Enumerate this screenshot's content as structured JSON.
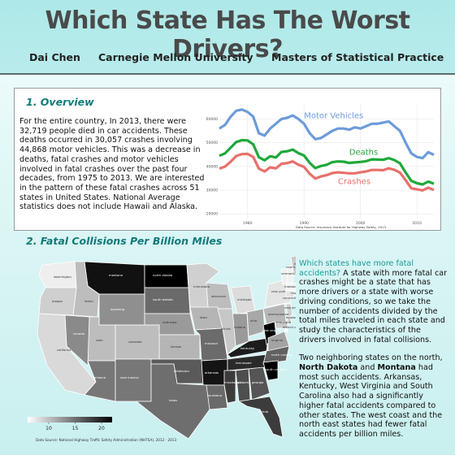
{
  "header": {
    "title": "Which State Has The Worst Drivers?",
    "author": "Dai Chen",
    "university": "Carnegie Mellon University",
    "program": "Masters of Statistical Practice"
  },
  "overview": {
    "heading": "1. Overview",
    "text": "For the entire country, In 2013, there were 32,719 people died in car accidents. These deaths occurred in 30,057 crashes involving 44,868 motor vehicles. This was a decrease in deaths, fatal crashes and motor vehicles involved in fatal crashes over the past four decades, from 1975 to 2013. We are interested in the pattern of these fatal crashes across 51 states in United States. National Average statistics does not include Hawaii and Alaska."
  },
  "chart_data": {
    "type": "line",
    "title": "",
    "xlabel": "",
    "ylabel": "",
    "xlim": [
      1975,
      2013
    ],
    "ylim": [
      18000,
      66000
    ],
    "xticks": [
      "1980",
      "1990",
      "2000",
      "2010"
    ],
    "xtick_values": [
      1980,
      1990,
      2000,
      2010
    ],
    "yticks": [
      "20000",
      "30000",
      "40000",
      "50000",
      "60000"
    ],
    "ytick_values": [
      20000,
      30000,
      40000,
      50000,
      60000
    ],
    "grid": true,
    "source": "Data Source:  Insurance Institute for Highway Safety, 2013",
    "x": [
      1975,
      1976,
      1977,
      1978,
      1979,
      1980,
      1981,
      1982,
      1983,
      1984,
      1985,
      1986,
      1987,
      1988,
      1989,
      1990,
      1991,
      1992,
      1993,
      1994,
      1995,
      1996,
      1997,
      1998,
      1999,
      2000,
      2001,
      2002,
      2003,
      2004,
      2005,
      2006,
      2007,
      2008,
      2009,
      2010,
      2011,
      2012,
      2013
    ],
    "series": [
      {
        "name": "Motor Vehicles",
        "color": "#6c9bd9",
        "values": [
          56000,
          57500,
          61000,
          63500,
          64000,
          63000,
          61000,
          54000,
          53000,
          56000,
          58000,
          60000,
          60500,
          61500,
          60000,
          58000,
          54000,
          51500,
          52000,
          53500,
          55000,
          56000,
          56000,
          55500,
          56500,
          56000,
          57000,
          58000,
          58000,
          58500,
          59000,
          57000,
          55000,
          50000,
          45500,
          44000,
          43500,
          46000,
          44900
        ]
      },
      {
        "name": "Deaths",
        "color": "#1fa83a",
        "values": [
          44500,
          45500,
          47900,
          50300,
          51100,
          51000,
          49300,
          43900,
          42600,
          44300,
          43800,
          46100,
          46400,
          47100,
          45600,
          44600,
          41500,
          39300,
          40200,
          40700,
          41800,
          42100,
          42000,
          41500,
          41700,
          41900,
          42200,
          43000,
          42900,
          42800,
          43500,
          42700,
          41300,
          37400,
          33900,
          32900,
          32400,
          33600,
          32700
        ]
      },
      {
        "name": "Crashes",
        "color": "#e8706b",
        "values": [
          39100,
          39900,
          42000,
          44400,
          45200,
          45300,
          44000,
          39100,
          37900,
          39600,
          39200,
          41100,
          41400,
          42100,
          40700,
          39800,
          36900,
          34900,
          35800,
          36300,
          37200,
          37500,
          37300,
          37100,
          37100,
          37500,
          37900,
          38500,
          38500,
          38400,
          39200,
          38600,
          37400,
          34200,
          30800,
          30300,
          29900,
          31000,
          30100
        ]
      }
    ]
  },
  "fatal": {
    "heading": "2. Fatal Collisions Per Billion Miles",
    "map_source": "Data Source:  National Highway Traffic Safety Administration (NHTSA), 2012 - 2013",
    "legend_ticks": [
      "10",
      "15",
      "20"
    ],
    "states": [
      "montana",
      "north dakota",
      "minnesota",
      "wisconsin",
      "south dakota",
      "wyoming",
      "idaho",
      "washington",
      "oregon",
      "nebraska",
      "iowa",
      "michigan",
      "new york",
      "vermont",
      "new hampshire",
      "maine",
      "massachusetts",
      "rhode island",
      "connecticut",
      "new jersey",
      "delaware",
      "maryland",
      "pennsylvania",
      "ohio",
      "indiana",
      "illinois",
      "kentucky",
      "west virginia",
      "virginia",
      "district of columbia",
      "missouri",
      "kansas",
      "colorado",
      "utah",
      "nevada",
      "california",
      "arizona",
      "new mexico",
      "oklahoma",
      "arkansas",
      "tennessee",
      "north carolina",
      "south carolina",
      "georgia",
      "alabama",
      "mississippi",
      "louisiana",
      "texas",
      "florida"
    ],
    "question": "Which states have more fatal accidents?",
    "p1": " A state with more fatal car crashes might be a state that has more drivers or a state with worse driving conditions, so we take the number of accidents divided by the total miles traveled in each state and study the characteristics of the drivers involved in fatal collisions.",
    "p2_a": "Two neighboring states on the north, ",
    "p2_nd": "North Dakota",
    "p2_and": " and ",
    "p2_mt": "Montana",
    "p2_b": " had most such accidents. Arkansas, Kentucky, West Virginia and South Carolina also had a significantly higher fatal accidents compared to other states. The west coast and the north east states had fewer fatal accidents per billion miles."
  }
}
